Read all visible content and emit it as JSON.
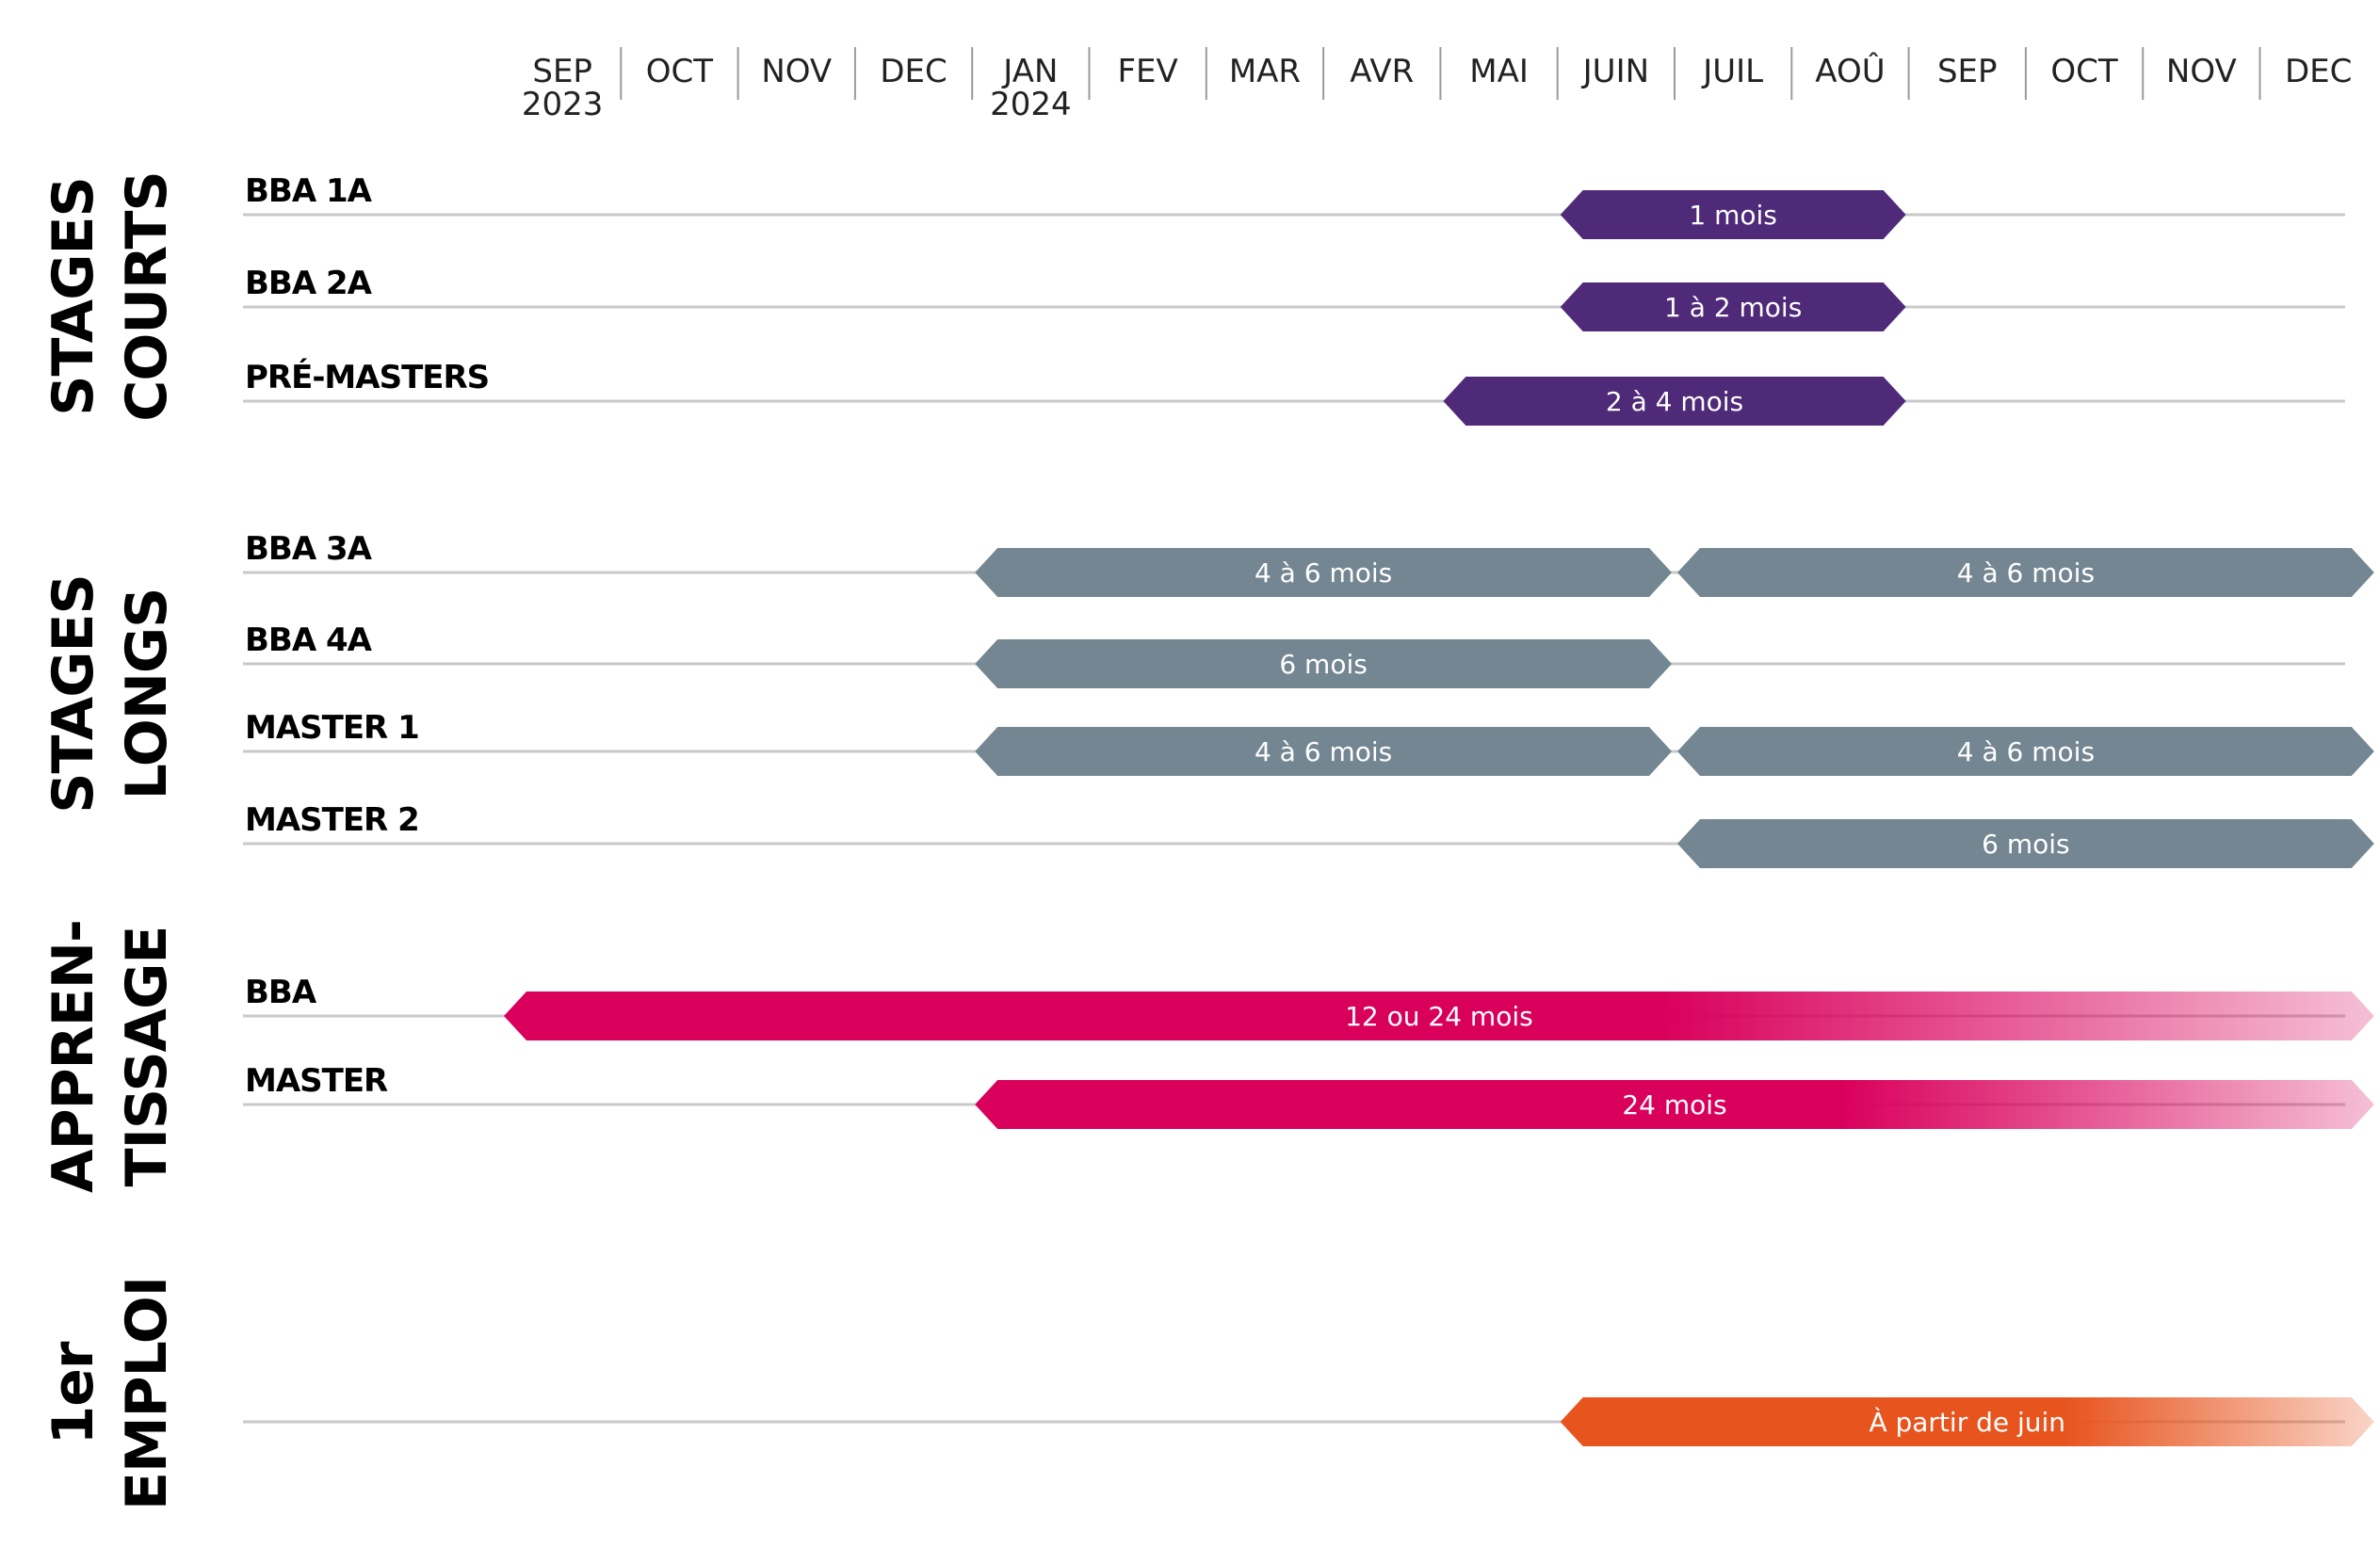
{
  "months": [
    {
      "label": "SEP",
      "year": "2023"
    },
    {
      "label": "OCT"
    },
    {
      "label": "NOV"
    },
    {
      "label": "DEC"
    },
    {
      "label": "JAN",
      "year": "2024"
    },
    {
      "label": "FEV"
    },
    {
      "label": "MAR"
    },
    {
      "label": "AVR"
    },
    {
      "label": "MAI"
    },
    {
      "label": "JUIN"
    },
    {
      "label": "JUIL"
    },
    {
      "label": "AOÛ"
    },
    {
      "label": "SEP"
    },
    {
      "label": "OCT"
    },
    {
      "label": "NOV"
    },
    {
      "label": "DEC"
    }
  ],
  "groups": [
    {
      "id": "stages-courts",
      "lines": [
        "STAGES",
        "COURTS"
      ],
      "color": "#4e2a78",
      "fade": false,
      "rows": [
        {
          "label": "BBA 1A",
          "bars": [
            {
              "start": 9,
              "end": 12,
              "label": "1 mois"
            }
          ]
        },
        {
          "label": "BBA 2A",
          "bars": [
            {
              "start": 9,
              "end": 12,
              "label": "1 à 2 mois"
            }
          ]
        },
        {
          "label": "PRÉ-MASTERS",
          "bars": [
            {
              "start": 8,
              "end": 12,
              "label": "2 à 4 mois"
            }
          ]
        }
      ]
    },
    {
      "id": "stages-longs",
      "lines": [
        "STAGES",
        "LONGS"
      ],
      "color": "#738691",
      "fade": false,
      "rows": [
        {
          "label": "BBA 3A",
          "bars": [
            {
              "start": 4,
              "end": 10,
              "label": "4 à 6 mois"
            },
            {
              "start": 10,
              "end": 16,
              "label": "4 à 6 mois"
            }
          ]
        },
        {
          "label": "BBA 4A",
          "bars": [
            {
              "start": 4,
              "end": 10,
              "label": "6 mois"
            }
          ]
        },
        {
          "label": "MASTER 1",
          "bars": [
            {
              "start": 4,
              "end": 10,
              "label": "4 à 6 mois"
            },
            {
              "start": 10,
              "end": 16,
              "label": "4 à 6 mois"
            }
          ]
        },
        {
          "label": "MASTER 2",
          "bars": [
            {
              "start": 10,
              "end": 16,
              "label": "6 mois"
            }
          ]
        }
      ]
    },
    {
      "id": "apprentissage",
      "lines": [
        "APPREN-",
        "TISSAGE"
      ],
      "color": "#d9005c",
      "fade": true,
      "rows": [
        {
          "label": "BBA",
          "bars": [
            {
              "start": 0,
              "end": 16,
              "label": "12 ou 24 mois"
            }
          ]
        },
        {
          "label": "MASTER",
          "bars": [
            {
              "start": 4,
              "end": 16,
              "label": "24 mois"
            }
          ]
        }
      ]
    },
    {
      "id": "premier-emploi",
      "lines": [
        "1er",
        "EMPLOI"
      ],
      "color": "#e8541e",
      "fade": true,
      "rows": [
        {
          "label": "",
          "bars": [
            {
              "start": 9,
              "end": 16,
              "label": "À partir de juin"
            }
          ]
        }
      ]
    }
  ]
}
